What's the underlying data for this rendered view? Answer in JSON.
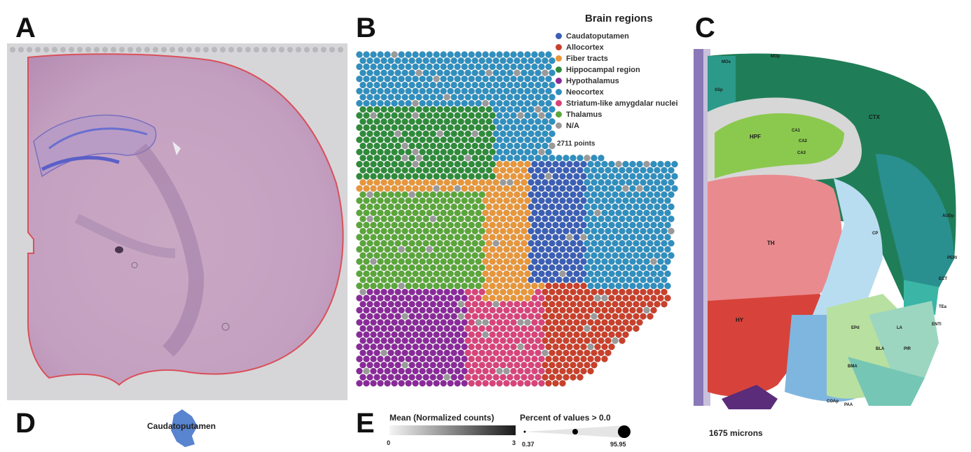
{
  "panels": {
    "a": "A",
    "b": "B",
    "c": "C",
    "d": "D",
    "e": "E"
  },
  "legend": {
    "title": "Brain regions",
    "points": "2711 points",
    "items": [
      {
        "label": "Caudatoputamen",
        "color": "#3b5fb5"
      },
      {
        "label": "Allocortex",
        "color": "#c9402b"
      },
      {
        "label": "Fiber tracts",
        "color": "#e8963a"
      },
      {
        "label": "Hippocampal region",
        "color": "#2e8b3a"
      },
      {
        "label": "Hypothalamus",
        "color": "#8a2a9a"
      },
      {
        "label": "Neocortex",
        "color": "#2f8fbf"
      },
      {
        "label": "Striatum-like amygdalar nuclei",
        "color": "#d8447a"
      },
      {
        "label": "Thalamus",
        "color": "#5aa63a"
      },
      {
        "label": "N/A",
        "color": "#9a9a9a"
      }
    ]
  },
  "atlas": {
    "scale_label": "1675 microns",
    "labels": [
      "HPF",
      "CA1",
      "CA2",
      "CA3",
      "TH",
      "HY",
      "CTX",
      "CP",
      "SSp",
      "MOs",
      "MOp",
      "AUDp",
      "ECT",
      "TEa",
      "PIR",
      "COAp",
      "PAA",
      "BLA",
      "LA",
      "BMA",
      "EPd",
      "ENTl",
      "PERI"
    ]
  },
  "panel_d": {
    "label": "Caudatoputamen"
  },
  "panel_e": {
    "mean_title": "Mean (Normalized counts)",
    "mean_min": "0",
    "mean_max": "3",
    "percent_title": "Percent of values > 0.0",
    "percent_min": "0.37",
    "percent_max": "95.95"
  }
}
